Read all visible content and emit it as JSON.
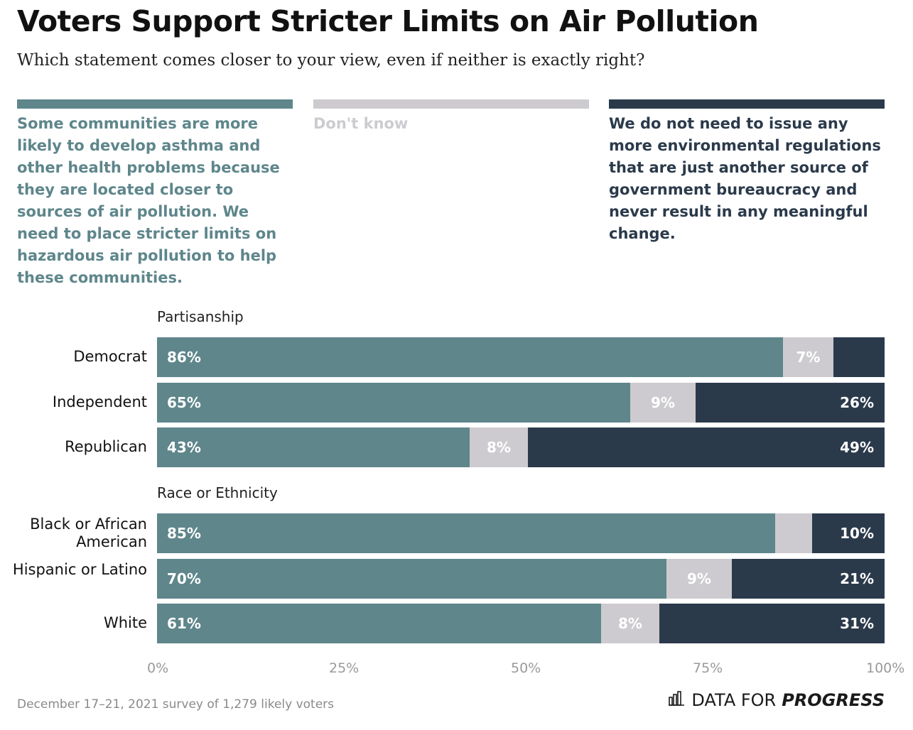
{
  "title": "Voters Support Stricter Limits on Air Pollution",
  "subtitle": "Which statement comes closer to your view, even if neither is exactly right?",
  "legend": [
    {
      "name": "Some communities are more likely to develop asthma and other health problems because they are located closer to sources of air pollution. We need to place stricter limits on hazardous air pollution to help these communities.",
      "color": "#5e868b"
    },
    {
      "name": "Don't know",
      "color": "#cdcbcf"
    },
    {
      "name": "We do not need to issue any more environmental regulations that are just another source of government bureaucracy and never result in any meaningful change.",
      "color": "#2b3a4b"
    }
  ],
  "chart_data": {
    "type": "bar",
    "orientation": "horizontal",
    "stacked": true,
    "xlim": [
      0,
      100
    ],
    "x_ticks": [
      "0%",
      "25%",
      "50%",
      "75%",
      "100%"
    ],
    "groups": [
      {
        "label": "Partisanship",
        "rows": [
          {
            "category": "Democrat",
            "values": [
              86,
              7,
              7
            ],
            "labels": [
              "86%",
              "7%",
              ""
            ]
          },
          {
            "category": "Independent",
            "values": [
              65,
              9,
              26
            ],
            "labels": [
              "65%",
              "9%",
              "26%"
            ]
          },
          {
            "category": "Republican",
            "values": [
              43,
              8,
              49
            ],
            "labels": [
              "43%",
              "8%",
              "49%"
            ]
          }
        ]
      },
      {
        "label": "Race or Ethnicity",
        "rows": [
          {
            "category": "Black or African American",
            "values": [
              85,
              5,
              10
            ],
            "labels": [
              "85%",
              "",
              "10%"
            ]
          },
          {
            "category": "Hispanic or Latino",
            "values": [
              70,
              9,
              21
            ],
            "labels": [
              "70%",
              "9%",
              "21%"
            ]
          },
          {
            "category": "White",
            "values": [
              61,
              8,
              31
            ],
            "labels": [
              "61%",
              "8%",
              "31%"
            ]
          }
        ]
      }
    ]
  },
  "footer": {
    "source": "December 17–21, 2021 survey of 1,279 likely voters",
    "brand_light": "DATA FOR",
    "brand_strong": "PROGRESS",
    "brand_icon": "bar-chart-icon"
  }
}
